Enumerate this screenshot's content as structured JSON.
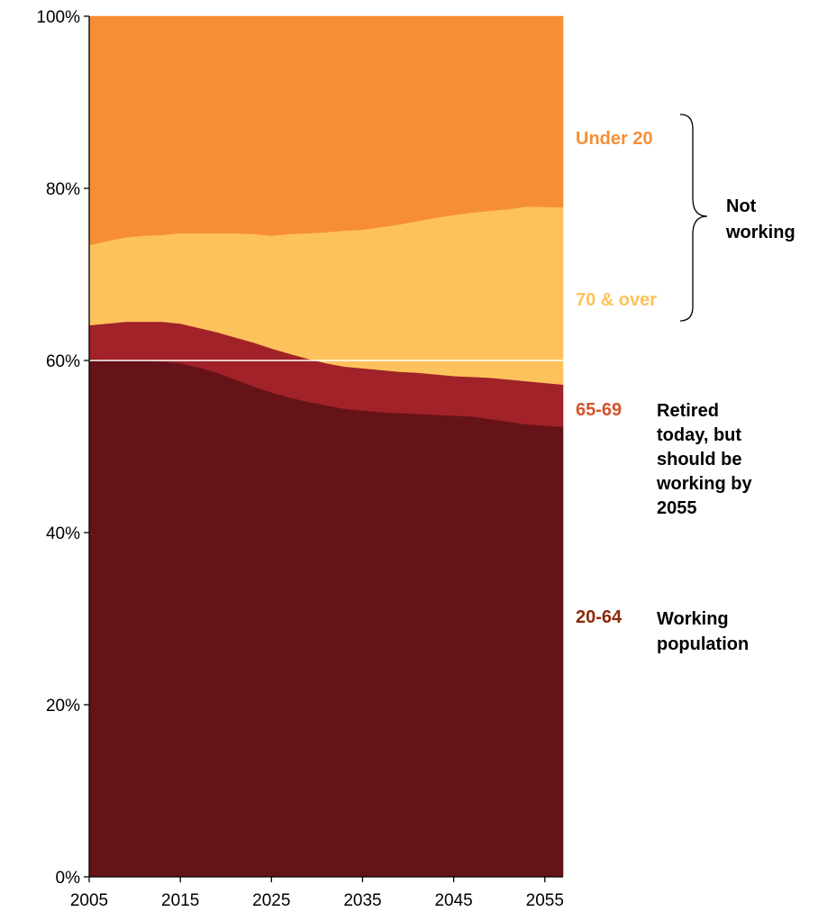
{
  "chart_data": {
    "type": "area",
    "stacked": true,
    "normalized": true,
    "x": [
      2005,
      2007,
      2009,
      2011,
      2013,
      2015,
      2017,
      2019,
      2021,
      2023,
      2025,
      2027,
      2029,
      2031,
      2033,
      2035,
      2037,
      2039,
      2041,
      2043,
      2045,
      2047,
      2049,
      2051,
      2053,
      2055
    ],
    "series": [
      {
        "name": "20-64",
        "color": "#651318",
        "values": [
          60.2,
          60.1,
          60.1,
          60.0,
          59.9,
          59.7,
          59.2,
          58.6,
          57.8,
          57.0,
          56.3,
          55.7,
          55.2,
          54.8,
          54.4,
          54.2,
          54.0,
          53.9,
          53.8,
          53.7,
          53.6,
          53.5,
          53.2,
          52.9,
          52.6,
          52.3
        ]
      },
      {
        "name": "65-69",
        "color": "#a12228",
        "values": [
          3.9,
          4.2,
          4.4,
          4.5,
          4.6,
          4.6,
          4.6,
          4.7,
          4.9,
          5.1,
          5.1,
          5.1,
          5.0,
          4.9,
          4.9,
          4.9,
          4.9,
          4.8,
          4.8,
          4.7,
          4.6,
          4.6,
          4.8,
          4.9,
          5.0,
          4.9
        ]
      },
      {
        "name": "70 & over",
        "color": "#fec25c",
        "values": [
          9.3,
          9.6,
          9.8,
          10.0,
          10.1,
          10.5,
          11.0,
          11.5,
          12.1,
          12.6,
          13.1,
          13.9,
          14.6,
          15.2,
          15.8,
          16.1,
          16.6,
          17.1,
          17.6,
          18.2,
          18.7,
          19.1,
          19.4,
          19.8,
          20.3,
          20.6
        ]
      },
      {
        "name": "Under 20",
        "color": "#f68e35",
        "values": [
          26.6,
          26.1,
          25.7,
          25.5,
          25.4,
          25.2,
          25.2,
          25.2,
          25.2,
          25.3,
          25.5,
          25.3,
          25.2,
          25.1,
          24.9,
          24.8,
          24.5,
          24.2,
          23.8,
          23.4,
          23.1,
          22.8,
          22.6,
          22.4,
          22.1,
          22.2
        ]
      }
    ],
    "reference_line": {
      "value": 60,
      "color": "#ffffff"
    },
    "x_ticks": [
      "2005",
      "2015",
      "2025",
      "2035",
      "2045",
      "2055"
    ],
    "y_ticks": [
      "0%",
      "20%",
      "40%",
      "60%",
      "80%",
      "100%"
    ],
    "xlim": [
      2005,
      2057
    ],
    "ylim": [
      0,
      100
    ],
    "grid": false
  },
  "labels": {
    "under20": "Under 20",
    "over70": "70 & over",
    "not_working": [
      "Not",
      "working"
    ],
    "age6569": "65-69",
    "retired_desc": [
      "Retired",
      "today, but",
      "should be",
      "working by",
      "2055"
    ],
    "age2064": "20-64",
    "working_desc": [
      "Working",
      "population"
    ]
  },
  "colors": {
    "under20": "#f68e35",
    "over70": "#fec25c",
    "age6569": "#d3542c",
    "age2064": "#8a2a0a"
  }
}
